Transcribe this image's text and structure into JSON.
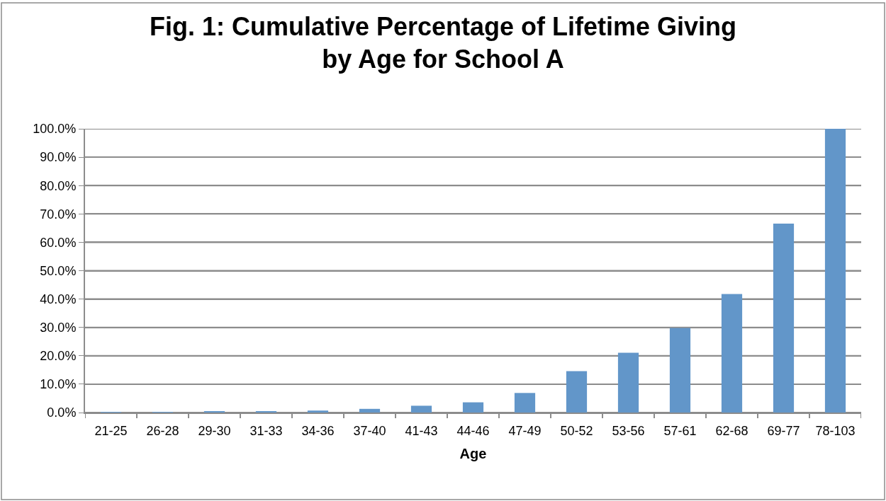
{
  "chart_data": {
    "type": "bar",
    "title": "Fig. 1: Cumulative Percentage of Lifetime Giving\nby Age for School A",
    "xlabel": "Age",
    "categories": [
      "21-25",
      "26-28",
      "29-30",
      "31-33",
      "34-36",
      "37-40",
      "41-43",
      "44-46",
      "47-49",
      "50-52",
      "53-56",
      "57-61",
      "62-68",
      "69-77",
      "78-103"
    ],
    "values": [
      0.1,
      0.1,
      0.3,
      0.5,
      0.7,
      1.3,
      2.4,
      3.6,
      6.9,
      14.6,
      21.1,
      29.8,
      41.8,
      66.6,
      100
    ],
    "color": "#6296c9",
    "ylim": [
      0,
      100
    ],
    "yticks": [
      {
        "value": 0,
        "label": "0.0%"
      },
      {
        "value": 10,
        "label": "10.0%"
      },
      {
        "value": 20,
        "label": "20.0%"
      },
      {
        "value": 30,
        "label": "30.0%"
      },
      {
        "value": 40,
        "label": "40.0%"
      },
      {
        "value": 50,
        "label": "50.0%"
      },
      {
        "value": 60,
        "label": "60.0%"
      },
      {
        "value": 70,
        "label": "70.0%"
      },
      {
        "value": 80,
        "label": "80.0%"
      },
      {
        "value": 90,
        "label": "90.0%"
      },
      {
        "value": 100,
        "label": "100.0%"
      }
    ],
    "grid": "y"
  }
}
